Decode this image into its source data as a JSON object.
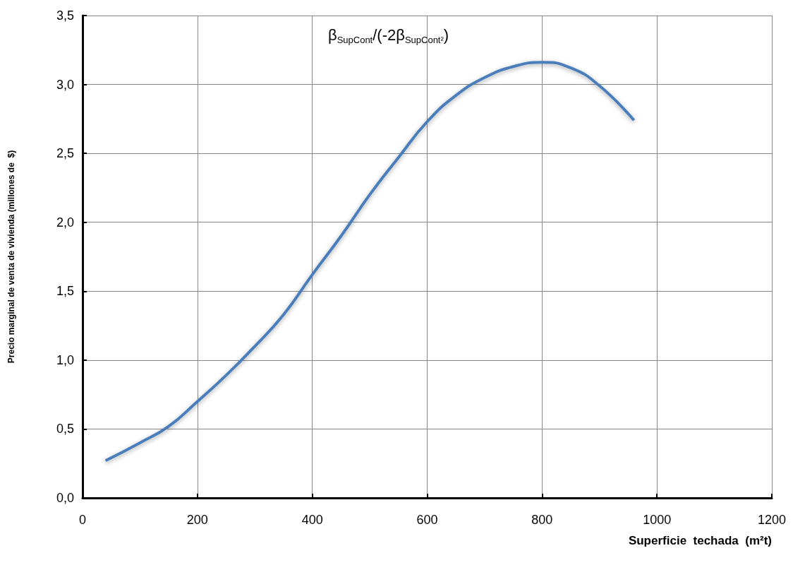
{
  "chart_data": {
    "type": "line",
    "xlabel": "Superficie  techada  (m²t)",
    "ylabel": "Precio marginal de venta de vivienda (millones de  $)",
    "annotations": [
      "β$_{SupCont}$/(-2β$_{SupCont²}$)"
    ],
    "x": [
      40,
      100,
      150,
      200,
      250,
      300,
      350,
      400,
      450,
      500,
      550,
      600,
      650,
      700,
      750,
      800,
      850,
      900,
      960
    ],
    "series": [
      {
        "color": "#4a7ebb",
        "values": [
          0.27,
          0.4,
          0.52,
          0.7,
          0.89,
          1.1,
          1.33,
          1.62,
          1.9,
          2.2,
          2.47,
          2.73,
          2.92,
          3.05,
          3.13,
          3.16,
          3.12,
          2.99,
          2.74
        ]
      }
    ],
    "xlim": [
      0,
      1200
    ],
    "xticks": [
      0,
      200,
      400,
      600,
      800,
      1000,
      1200
    ],
    "ylim": [
      0,
      3.5
    ],
    "yticks": [
      {
        "value": 0,
        "label": "0,0"
      },
      {
        "value": 0.5,
        "label": "0,5"
      },
      {
        "value": 1,
        "label": "1,0"
      },
      {
        "value": 1.5,
        "label": "1,5"
      },
      {
        "value": 2,
        "label": "2,0"
      },
      {
        "value": 2.5,
        "label": "2,5"
      },
      {
        "value": 3,
        "label": "3,0"
      },
      {
        "value": 3.5,
        "label": "3,5"
      }
    ],
    "grid": true,
    "marker": "none",
    "line_style": "solid"
  }
}
